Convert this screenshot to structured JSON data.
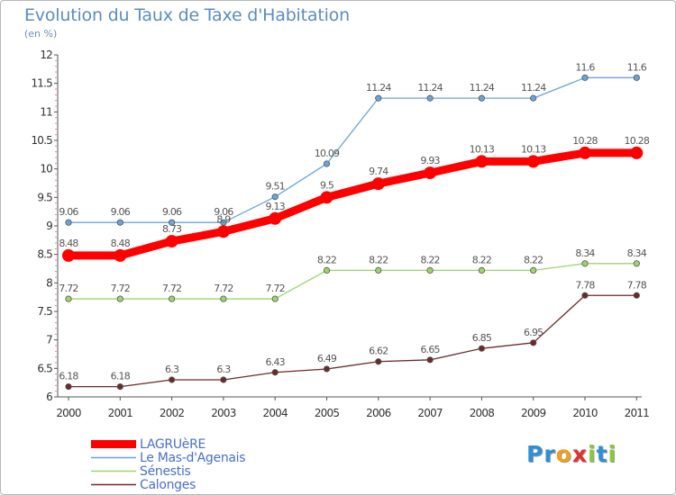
{
  "header": {
    "title": "Evolution du Taux de Taxe d'Habitation",
    "subtitle": "(en %)"
  },
  "brand": {
    "letters": [
      {
        "char": "P",
        "color": "#2f8fd6"
      },
      {
        "char": "r",
        "color": "#2f8fd6"
      },
      {
        "char": "o",
        "color": "#f0a020"
      },
      {
        "char": "x",
        "color": "#e03030"
      },
      {
        "char": "i",
        "color": "#8cc83c"
      },
      {
        "char": "t",
        "color": "#2f8fd6"
      },
      {
        "char": "i",
        "color": "#8cc83c"
      }
    ]
  },
  "chart_data": {
    "type": "line",
    "title": "Evolution du Taux de Taxe d'Habitation",
    "subtitle": "(en %)",
    "x": [
      "2000",
      "2001",
      "2002",
      "2003",
      "2004",
      "2005",
      "2006",
      "2007",
      "2008",
      "2009",
      "2010",
      "2011"
    ],
    "ylim": [
      6,
      12
    ],
    "yticks": [
      "6",
      "6.5",
      "7",
      "7.5",
      "8",
      "8.5",
      "9",
      "9.5",
      "10",
      "10.5",
      "11",
      "11.5",
      "12"
    ],
    "grid": false,
    "legend_position": "bottom-left",
    "series": [
      {
        "name": "LAGRUèRE",
        "color": "#ff0000",
        "values": [
          8.48,
          8.48,
          8.73,
          8.9,
          9.13,
          9.5,
          9.74,
          9.93,
          10.13,
          10.13,
          10.28,
          10.28
        ],
        "labels": [
          "8.48",
          "8.48",
          "8.73",
          "8.9",
          "9.13",
          "9.5",
          "9.74",
          "9.93",
          "10.13",
          "10.13",
          "10.28",
          "10.28"
        ]
      },
      {
        "name": "Le Mas-d'Agenais",
        "color": "#6aa4d8",
        "values": [
          9.06,
          9.06,
          9.06,
          9.06,
          9.51,
          10.09,
          11.24,
          11.24,
          11.24,
          11.24,
          11.6,
          11.6
        ],
        "labels": [
          "9.06",
          "9.06",
          "9.06",
          "9.06",
          "9.51",
          "10.09",
          "11.24",
          "11.24",
          "11.24",
          "11.24",
          "11.6",
          "11.6"
        ]
      },
      {
        "name": "Sénestis",
        "color": "#9ad66a",
        "values": [
          7.72,
          7.72,
          7.72,
          7.72,
          7.72,
          8.22,
          8.22,
          8.22,
          8.22,
          8.22,
          8.34,
          8.34
        ],
        "labels": [
          "7.72",
          "7.72",
          "7.72",
          "7.72",
          "7.72",
          "8.22",
          "8.22",
          "8.22",
          "8.22",
          "8.22",
          "8.34",
          "8.34"
        ]
      },
      {
        "name": "Calonges",
        "color": "#6b2a2a",
        "values": [
          6.18,
          6.18,
          6.3,
          6.3,
          6.43,
          6.49,
          6.62,
          6.65,
          6.85,
          6.95,
          7.78,
          7.78
        ],
        "labels": [
          "6.18",
          "6.18",
          "6.3",
          "6.3",
          "6.43",
          "6.49",
          "6.62",
          "6.65",
          "6.85",
          "6.95",
          "7.78",
          "7.78"
        ]
      }
    ]
  }
}
